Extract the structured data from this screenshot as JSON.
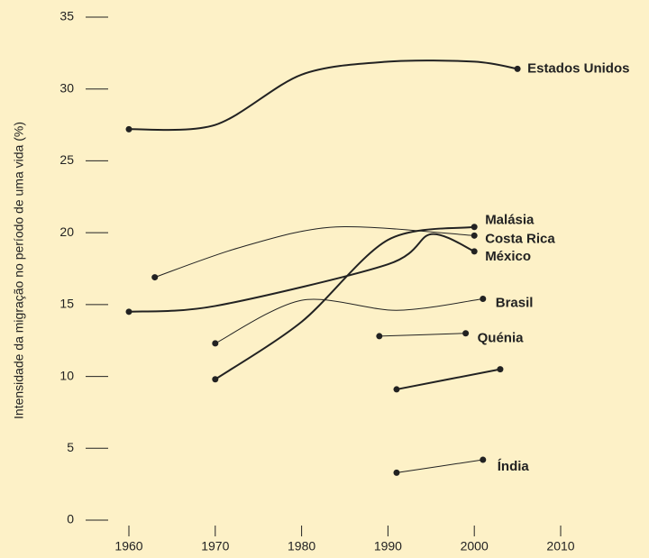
{
  "chart_data": {
    "type": "line",
    "y_label": "Intensidade da migração no período de uma vida (%)",
    "xlim": [
      1960,
      2010
    ],
    "xticks": [
      1960,
      1970,
      1980,
      1990,
      2000,
      2010
    ],
    "ylim": [
      0,
      35
    ],
    "yticks": [
      0,
      5,
      10,
      15,
      20,
      25,
      30,
      35
    ],
    "series": [
      {
        "name": "Estados Unidos",
        "color": "#222222",
        "line_width": 2,
        "x": [
          1960,
          1970,
          1980,
          1990,
          2000,
          2005
        ],
        "values": [
          27.2,
          27.5,
          31,
          31.9,
          31.9,
          31.4
        ]
      },
      {
        "name": "Malásia",
        "color": "#222222",
        "line_width": 2,
        "x": [
          1970,
          1980,
          1990,
          2000
        ],
        "values": [
          9.8,
          13.8,
          19.5,
          20.4
        ]
      },
      {
        "name": "Costa Rica",
        "color": "#222222",
        "line_width": 1,
        "x": [
          1963,
          1973,
          1984,
          2000
        ],
        "values": [
          16.9,
          19,
          20.4,
          19.8
        ]
      },
      {
        "name": "México",
        "color": "#222222",
        "line_width": 2,
        "x": [
          1960,
          1970,
          1990,
          1995,
          2000
        ],
        "values": [
          14.5,
          14.9,
          17.8,
          19.9,
          18.7
        ]
      },
      {
        "name": "Brasil",
        "color": "#222222",
        "line_width": 1,
        "x": [
          1970,
          1980,
          1991,
          2001
        ],
        "values": [
          12.3,
          15.3,
          14.6,
          15.4
        ]
      },
      {
        "name": "Quénia",
        "color": "#222222",
        "line_width": 1,
        "x": [
          1989,
          1999
        ],
        "values": [
          12.8,
          13
        ]
      },
      {
        "color": "#222222",
        "line_width": 2,
        "x": [
          1991,
          2003
        ],
        "values": [
          9.1,
          10.5
        ]
      },
      {
        "name": "Índia",
        "color": "#222222",
        "line_width": 1,
        "x": [
          1991,
          2001
        ],
        "values": [
          3.3,
          4.2
        ]
      }
    ]
  }
}
